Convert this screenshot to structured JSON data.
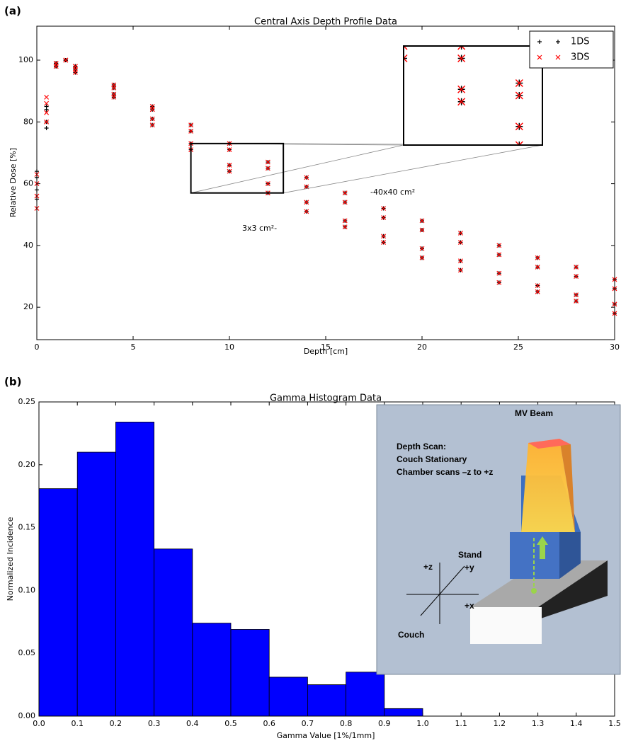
{
  "chart_data": [
    {
      "type": "scatter",
      "panel": "(a)",
      "title": "Central Axis Depth Profile Data",
      "xlabel": "Depth [cm]",
      "ylabel": "Relative Dose [%]",
      "xlim": [
        0,
        30
      ],
      "ylim": [
        9.5,
        111
      ],
      "xticks": [
        0,
        5,
        10,
        15,
        20,
        25,
        30
      ],
      "yticks": [
        20,
        40,
        60,
        80,
        100
      ],
      "legend": "upper right",
      "zoom": {
        "xlim": [
          8,
          12.8
        ],
        "ylim": [
          57,
          73
        ]
      },
      "annotations": [
        "-40x40 cm²",
        "3x3 cm²-"
      ],
      "x": [
        0,
        0.5,
        1,
        1.5,
        2,
        4,
        6,
        8,
        10,
        12,
        14,
        16,
        18,
        20,
        22,
        24,
        26,
        28,
        30,
        0,
        0.5,
        1,
        1.5,
        2,
        4,
        6,
        8,
        10,
        12,
        14,
        16,
        18,
        20,
        22,
        24,
        26,
        28,
        30,
        0,
        0.5,
        1,
        1.5,
        2,
        4,
        6,
        8,
        10,
        12,
        14,
        16,
        18,
        20,
        22,
        24,
        26,
        28,
        30,
        0,
        0.5,
        1,
        1.5,
        2,
        4,
        6,
        8,
        10,
        12,
        14,
        16,
        18,
        20,
        22,
        24,
        26,
        28,
        30
      ],
      "series": [
        {
          "name": "1DS",
          "color": "#000000",
          "marker": "+",
          "values": [
            55,
            85,
            99,
            100,
            98,
            92,
            85,
            79,
            73,
            67,
            62,
            57,
            52,
            48,
            44,
            40,
            36,
            33,
            29,
            58,
            84,
            99,
            100,
            98,
            91,
            84,
            77,
            71,
            65,
            59,
            54,
            49,
            45,
            41,
            37,
            33,
            30,
            26,
            62,
            80,
            98,
            100,
            97,
            89,
            81,
            73,
            66,
            60,
            54,
            48,
            43,
            39,
            35,
            31,
            27,
            24,
            21,
            64,
            78,
            98,
            100,
            96,
            88,
            79,
            71,
            64,
            57,
            51,
            46,
            41,
            36,
            32,
            28,
            25,
            22,
            18
          ]
        },
        {
          "name": "3DS",
          "color": "#ff0000",
          "marker": "x",
          "values": [
            52,
            88,
            99,
            100,
            98,
            92,
            85,
            79,
            73,
            67,
            62,
            57,
            52,
            48,
            44,
            40,
            36,
            33,
            29,
            56,
            86,
            99,
            100,
            98,
            91,
            84,
            77,
            71,
            65,
            59,
            54,
            49,
            45,
            41,
            37,
            33,
            30,
            26,
            60,
            83,
            98,
            100,
            97,
            89,
            81,
            73,
            66,
            60,
            54,
            48,
            43,
            39,
            35,
            31,
            27,
            24,
            21,
            63,
            80,
            98,
            100,
            96,
            88,
            79,
            71,
            64,
            57,
            51,
            46,
            41,
            36,
            32,
            28,
            25,
            22,
            18
          ]
        }
      ]
    },
    {
      "type": "histogram",
      "panel": "(b)",
      "title": "Gamma Histogram Data",
      "xlabel": "Gamma Value [1%/1mm]",
      "ylabel": "Normalized Incidence",
      "bins": [
        0,
        0.1,
        0.2,
        0.3,
        0.4,
        0.5,
        0.6,
        0.7,
        0.8,
        0.9,
        1.0
      ],
      "values": [
        0.181,
        0.21,
        0.234,
        0.133,
        0.074,
        0.069,
        0.031,
        0.025,
        0.035,
        0.006
      ],
      "color": "#0000ff",
      "xlim": [
        0,
        1.5
      ],
      "ylim": [
        0,
        0.25
      ],
      "xticks": [
        {
          "value": 0,
          "label": "0.0"
        },
        {
          "value": 0.1,
          "label": "0.1"
        },
        {
          "value": 0.2,
          "label": "0.2"
        },
        {
          "value": 0.3,
          "label": "0.3"
        },
        {
          "value": 0.4,
          "label": "0.4"
        },
        {
          "value": 0.5,
          "label": "0.5"
        },
        {
          "value": 0.6,
          "label": "0.6"
        },
        {
          "value": 0.7,
          "label": "0.7"
        },
        {
          "value": 0.8,
          "label": "0.8"
        },
        {
          "value": 0.9,
          "label": "0.9"
        },
        {
          "value": 1.0,
          "label": "1.0"
        },
        {
          "value": 1.1,
          "label": "1.1"
        },
        {
          "value": 1.2,
          "label": "1.2"
        },
        {
          "value": 1.3,
          "label": "1.3"
        },
        {
          "value": 1.4,
          "label": "1.4"
        },
        {
          "value": 1.5,
          "label": "1.5"
        }
      ],
      "yticks": [
        {
          "value": 0,
          "label": "0.00"
        },
        {
          "value": 0.05,
          "label": "0.05"
        },
        {
          "value": 0.1,
          "label": "0.10"
        },
        {
          "value": 0.15,
          "label": "0.15"
        },
        {
          "value": 0.2,
          "label": "0.20"
        },
        {
          "value": 0.25,
          "label": "0.25"
        }
      ],
      "diagram": {
        "title": "MV Beam",
        "caption": [
          "Depth Scan:",
          "Couch Stationary",
          "Chamber scans –z to +z"
        ],
        "labels": [
          "Stand",
          "+z",
          "+y",
          "+x",
          "Couch"
        ]
      }
    }
  ]
}
